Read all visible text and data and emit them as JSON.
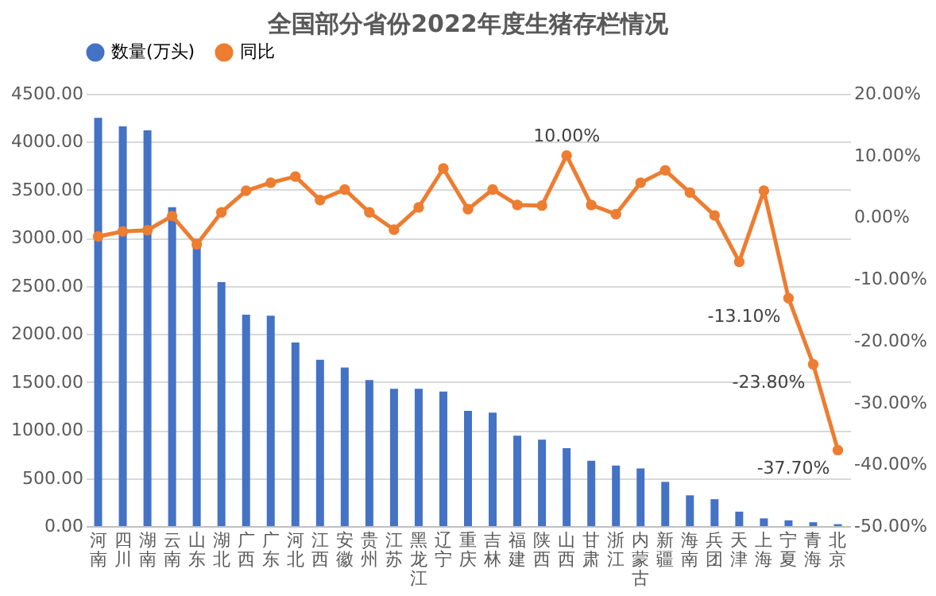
{
  "chart_data": {
    "type": "bar",
    "title": "全国部分省份2022年度生猪存栏情况",
    "categories": [
      "河南",
      "四川",
      "湖南",
      "云南",
      "山东",
      "湖北",
      "广西",
      "广东",
      "河北",
      "江西",
      "安徽",
      "贵州",
      "江苏",
      "黑龙江",
      "辽宁",
      "重庆",
      "吉林",
      "福建",
      "陕西",
      "山西",
      "甘肃",
      "浙江",
      "内蒙古",
      "新疆",
      "海南",
      "兵团",
      "天津",
      "上海",
      "宁夏",
      "青海",
      "北京"
    ],
    "series": [
      {
        "name": "数量(万头)",
        "color": "#4472c4",
        "values": [
          4250,
          4160,
          4120,
          3320,
          2990,
          2540,
          2200,
          2190,
          1910,
          1730,
          1650,
          1520,
          1430,
          1430,
          1400,
          1200,
          1180,
          940,
          900,
          810,
          680,
          630,
          600,
          460,
          320,
          280,
          150,
          80,
          60,
          40,
          20
        ]
      },
      {
        "name": "同比",
        "type": "line",
        "axis": "y2",
        "color": "#ed7d31",
        "marker": "circle",
        "values": [
          -3.1,
          -2.3,
          -2.1,
          0.2,
          -4.4,
          0.8,
          4.3,
          5.6,
          6.6,
          2.8,
          4.5,
          0.8,
          -2.0,
          1.6,
          7.9,
          1.3,
          4.5,
          2.0,
          1.9,
          10.0,
          2.0,
          0.5,
          5.6,
          7.6,
          4.0,
          0.3,
          -7.2,
          4.3,
          -13.1,
          -23.8,
          -37.7
        ],
        "value_labels": [
          null,
          null,
          null,
          null,
          null,
          null,
          null,
          null,
          null,
          null,
          null,
          null,
          null,
          null,
          null,
          null,
          null,
          null,
          null,
          "10.00%",
          null,
          null,
          null,
          null,
          null,
          null,
          null,
          null,
          "-13.10%",
          "-23.80%",
          "-37.70%"
        ]
      }
    ],
    "ylim": [
      0,
      4500
    ],
    "yticks": [
      {
        "value": 0,
        "label": "0.00"
      },
      {
        "value": 500,
        "label": "500.00"
      },
      {
        "value": 1000,
        "label": "1000.00"
      },
      {
        "value": 1500,
        "label": "1500.00"
      },
      {
        "value": 2000,
        "label": "2000.00"
      },
      {
        "value": 2500,
        "label": "2500.00"
      },
      {
        "value": 3000,
        "label": "3000.00"
      },
      {
        "value": 3500,
        "label": "3500.00"
      },
      {
        "value": 4000,
        "label": "4000.00"
      },
      {
        "value": 4500,
        "label": "4500.00"
      }
    ],
    "y2lim": [
      -50,
      20
    ],
    "y2ticks": [
      {
        "value": -50,
        "label": "-50.00%"
      },
      {
        "value": -40,
        "label": "-40.00%"
      },
      {
        "value": -30,
        "label": "-30.00%"
      },
      {
        "value": -20,
        "label": "-20.00%"
      },
      {
        "value": -10,
        "label": "-10.00%"
      },
      {
        "value": 0,
        "label": "0.00%"
      },
      {
        "value": 10,
        "label": "10.00%"
      },
      {
        "value": 20,
        "label": "20.00%"
      }
    ],
    "grid": "y",
    "legend": "top"
  }
}
